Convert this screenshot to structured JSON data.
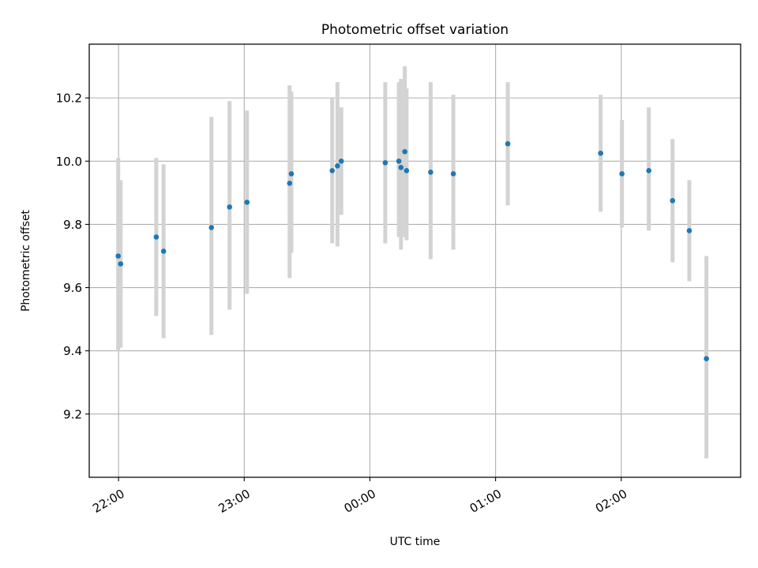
{
  "chart_data": {
    "type": "scatter",
    "title": "Photometric offset variation",
    "xlabel": "UTC time",
    "ylabel": "Photometric offset",
    "x_tick_labels": [
      "22:00",
      "23:00",
      "00:00",
      "01:00",
      "02:00"
    ],
    "y_ticks": [
      9.2,
      9.4,
      9.6,
      9.8,
      10.0,
      10.2
    ],
    "y_tick_labels": [
      "9.2",
      "9.4",
      "9.6",
      "9.8",
      "10.0",
      "10.2"
    ],
    "xlim": [
      "21:46",
      "02:57"
    ],
    "ylim": [
      9.0,
      10.37
    ],
    "grid": true,
    "errorbar_color": "#d3d3d3",
    "marker_color": "#1f77b4",
    "points": [
      {
        "time": "21:59:50",
        "y": 9.7,
        "err_low": 9.4,
        "err_high": 10.01
      },
      {
        "time": "22:01:00",
        "y": 9.675,
        "err_low": 9.41,
        "err_high": 9.94
      },
      {
        "time": "22:18:00",
        "y": 9.76,
        "err_low": 9.51,
        "err_high": 10.01
      },
      {
        "time": "22:21:30",
        "y": 9.715,
        "err_low": 9.44,
        "err_high": 9.99
      },
      {
        "time": "22:44:20",
        "y": 9.79,
        "err_low": 9.45,
        "err_high": 10.14
      },
      {
        "time": "22:53:00",
        "y": 9.855,
        "err_low": 9.53,
        "err_high": 10.19
      },
      {
        "time": "23:01:20",
        "y": 9.87,
        "err_low": 9.58,
        "err_high": 10.16
      },
      {
        "time": "23:21:40",
        "y": 9.93,
        "err_low": 9.63,
        "err_high": 10.24
      },
      {
        "time": "23:22:30",
        "y": 9.96,
        "err_low": 9.71,
        "err_high": 10.22
      },
      {
        "time": "23:42:00",
        "y": 9.97,
        "err_low": 9.74,
        "err_high": 10.2
      },
      {
        "time": "23:44:30",
        "y": 9.985,
        "err_low": 9.73,
        "err_high": 10.25
      },
      {
        "time": "23:46:20",
        "y": 10.0,
        "err_low": 9.83,
        "err_high": 10.17
      },
      {
        "time": "00:07:20",
        "y": 9.995,
        "err_low": 9.74,
        "err_high": 10.25
      },
      {
        "time": "00:13:50",
        "y": 10.0,
        "err_low": 9.76,
        "err_high": 10.25
      },
      {
        "time": "00:14:50",
        "y": 9.98,
        "err_low": 9.72,
        "err_high": 10.26
      },
      {
        "time": "00:16:40",
        "y": 10.03,
        "err_low": 9.76,
        "err_high": 10.3
      },
      {
        "time": "00:17:30",
        "y": 9.97,
        "err_low": 9.75,
        "err_high": 10.23
      },
      {
        "time": "00:29:00",
        "y": 9.965,
        "err_low": 9.69,
        "err_high": 10.25
      },
      {
        "time": "00:39:50",
        "y": 9.96,
        "err_low": 9.72,
        "err_high": 10.21
      },
      {
        "time": "01:05:50",
        "y": 10.055,
        "err_low": 9.86,
        "err_high": 10.25
      },
      {
        "time": "01:50:10",
        "y": 10.025,
        "err_low": 9.84,
        "err_high": 10.21
      },
      {
        "time": "02:00:20",
        "y": 9.96,
        "err_low": 9.79,
        "err_high": 10.13
      },
      {
        "time": "02:13:10",
        "y": 9.97,
        "err_low": 9.78,
        "err_high": 10.17
      },
      {
        "time": "02:24:30",
        "y": 9.875,
        "err_low": 9.68,
        "err_high": 10.07
      },
      {
        "time": "02:32:30",
        "y": 9.78,
        "err_low": 9.62,
        "err_high": 9.94
      },
      {
        "time": "02:40:40",
        "y": 9.375,
        "err_low": 9.06,
        "err_high": 9.7
      }
    ]
  }
}
